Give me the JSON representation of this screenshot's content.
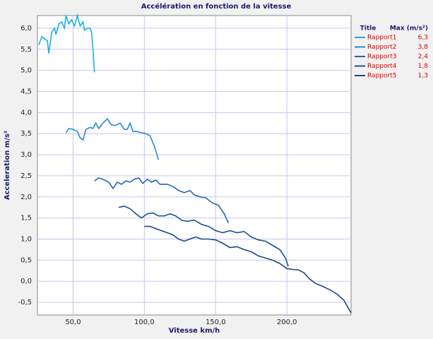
{
  "chart_data": {
    "type": "line",
    "title": "Accélération en fonction de la vitesse",
    "xlabel": "Vitesse km/h",
    "ylabel": "Acceleration m/s²",
    "legend_header": [
      "Title",
      "Max (m/s²)"
    ],
    "xlim": [
      25,
      245
    ],
    "ylim": [
      -0.8,
      6.3
    ],
    "xticks": [
      {
        "value": 50,
        "label": "50,0"
      },
      {
        "value": 100,
        "label": "100,0"
      },
      {
        "value": 150,
        "label": "150,0"
      },
      {
        "value": 200,
        "label": "200,0"
      }
    ],
    "yticks": [
      {
        "value": -0.5,
        "label": "-0,5"
      },
      {
        "value": 0,
        "label": "0,0"
      },
      {
        "value": 0.5,
        "label": "0,5"
      },
      {
        "value": 1,
        "label": "1,0"
      },
      {
        "value": 1.5,
        "label": "1,5"
      },
      {
        "value": 2,
        "label": "2,0"
      },
      {
        "value": 2.5,
        "label": "2,5"
      },
      {
        "value": 3,
        "label": "3,0"
      },
      {
        "value": 3.5,
        "label": "3,5"
      },
      {
        "value": 4,
        "label": "4,0"
      },
      {
        "value": 4.5,
        "label": "4,5"
      },
      {
        "value": 5,
        "label": "5,0"
      },
      {
        "value": 5.5,
        "label": "5,5"
      },
      {
        "value": 6,
        "label": "6,0"
      }
    ],
    "grid": true,
    "series": [
      {
        "name": "Rapport1",
        "color": "#1ab0e8",
        "max": "6,3",
        "x": [
          26,
          28,
          30,
          32,
          33,
          35,
          37,
          38,
          40,
          42,
          44,
          45,
          47,
          49,
          51,
          53,
          55,
          57,
          58,
          60,
          62,
          63,
          64,
          65
        ],
        "values": [
          5.6,
          5.8,
          5.75,
          5.7,
          5.4,
          5.9,
          6.0,
          5.85,
          6.1,
          6.15,
          6.0,
          6.3,
          6.1,
          6.2,
          6.05,
          6.3,
          6.05,
          6.15,
          5.95,
          6.0,
          6.0,
          5.9,
          5.5,
          4.95
        ]
      },
      {
        "name": "Rapport2",
        "color": "#2a8ad0",
        "max": "3,8",
        "x": [
          45,
          47,
          50,
          53,
          55,
          57,
          59,
          62,
          64,
          66,
          68,
          71,
          74,
          77,
          80,
          83,
          86,
          88,
          90,
          92,
          95,
          98,
          101,
          104,
          107,
          110
        ],
        "values": [
          3.52,
          3.62,
          3.6,
          3.55,
          3.4,
          3.35,
          3.6,
          3.65,
          3.62,
          3.75,
          3.62,
          3.75,
          3.85,
          3.7,
          3.7,
          3.75,
          3.6,
          3.6,
          3.75,
          3.55,
          3.55,
          3.52,
          3.5,
          3.45,
          3.2,
          2.88
        ]
      },
      {
        "name": "Rapport3",
        "color": "#2466ae",
        "max": "2,4",
        "x": [
          65,
          68,
          72,
          75,
          78,
          81,
          84,
          87,
          90,
          93,
          96,
          99,
          102,
          105,
          108,
          111,
          116,
          120,
          124,
          128,
          132,
          135,
          139,
          143,
          148,
          152,
          156,
          159
        ],
        "values": [
          2.38,
          2.45,
          2.4,
          2.35,
          2.2,
          2.35,
          2.3,
          2.38,
          2.35,
          2.42,
          2.45,
          2.32,
          2.42,
          2.35,
          2.4,
          2.3,
          2.3,
          2.25,
          2.15,
          2.1,
          2.15,
          2.05,
          2.0,
          1.98,
          1.85,
          1.8,
          1.6,
          1.38
        ]
      },
      {
        "name": "Rapport4",
        "color": "#1c5296",
        "max": "1,8",
        "x": [
          82,
          86,
          90,
          94,
          98,
          102,
          106,
          110,
          114,
          118,
          122,
          126,
          130,
          135,
          140,
          145,
          150,
          155,
          160,
          165,
          170,
          175,
          180,
          185,
          190,
          195,
          199,
          201
        ],
        "values": [
          1.75,
          1.78,
          1.72,
          1.6,
          1.5,
          1.6,
          1.62,
          1.55,
          1.55,
          1.6,
          1.55,
          1.45,
          1.42,
          1.45,
          1.35,
          1.3,
          1.2,
          1.15,
          1.2,
          1.15,
          1.18,
          1.05,
          0.98,
          0.95,
          0.85,
          0.75,
          0.55,
          0.35
        ]
      },
      {
        "name": "Rapport5",
        "color": "#1a4886",
        "max": "1,3",
        "x": [
          100,
          104,
          108,
          112,
          116,
          120,
          124,
          128,
          132,
          136,
          140,
          145,
          150,
          155,
          160,
          165,
          170,
          175,
          180,
          185,
          190,
          195,
          200,
          204,
          208,
          212,
          216,
          220,
          225,
          230,
          235,
          240,
          245
        ],
        "values": [
          1.3,
          1.3,
          1.25,
          1.2,
          1.15,
          1.1,
          1.0,
          0.95,
          1.0,
          1.05,
          1.0,
          1.0,
          0.98,
          0.9,
          0.8,
          0.82,
          0.75,
          0.7,
          0.6,
          0.55,
          0.5,
          0.42,
          0.3,
          0.28,
          0.27,
          0.2,
          0.05,
          -0.05,
          -0.12,
          -0.2,
          -0.3,
          -0.45,
          -0.75
        ]
      }
    ]
  }
}
